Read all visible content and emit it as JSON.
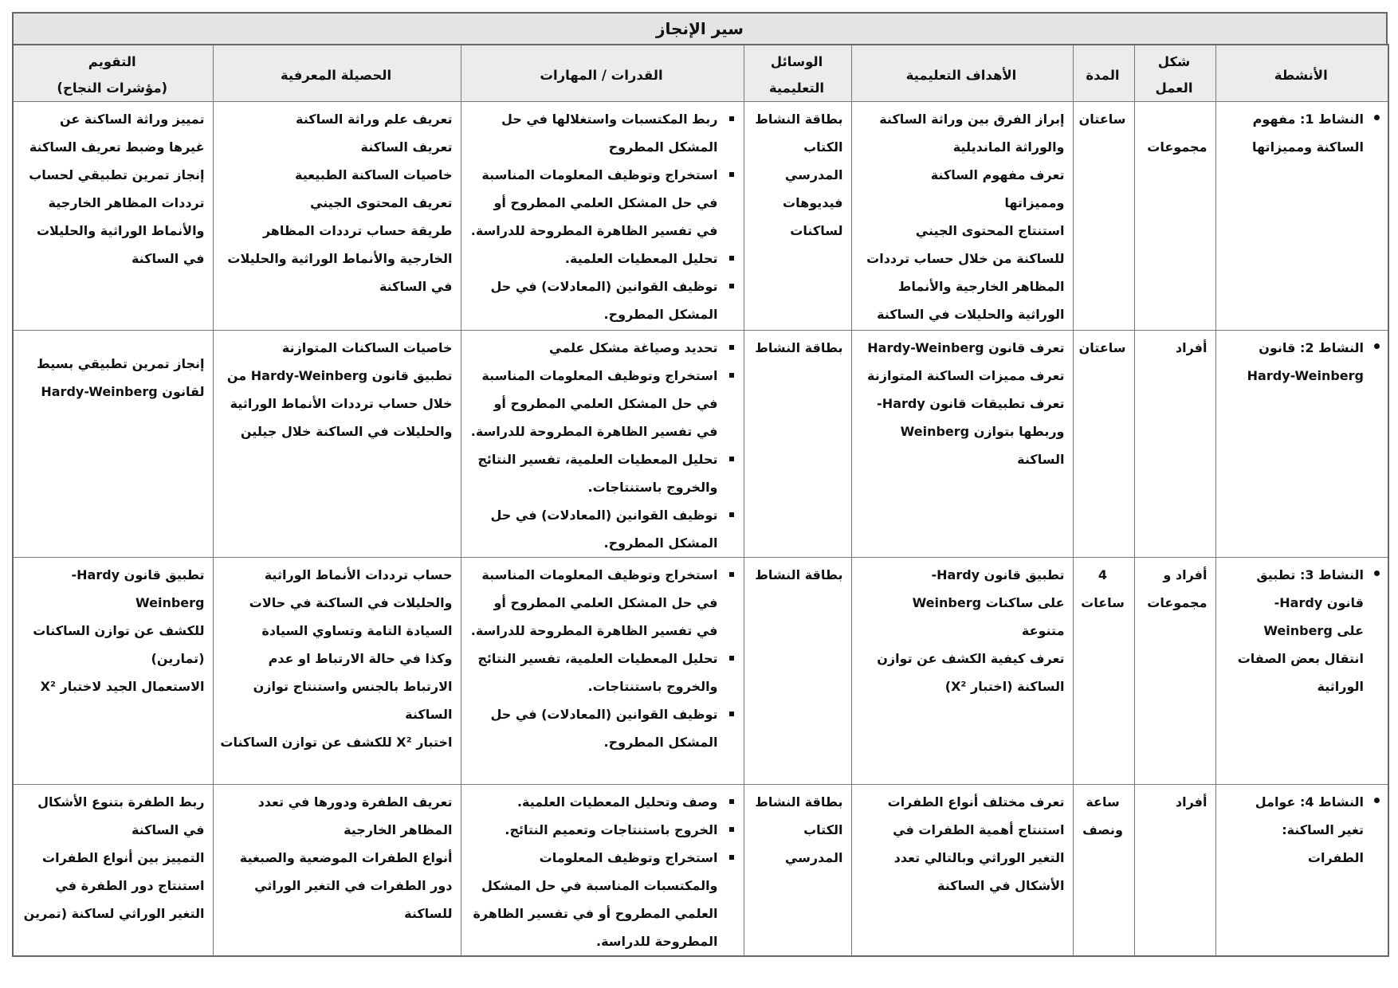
{
  "title": "سير الإنجاز",
  "headers": {
    "activities": [
      "الأنشطة"
    ],
    "work_form": [
      "شكل",
      "العمل"
    ],
    "duration": [
      "المدة"
    ],
    "objectives": [
      "الأهداف التعليمية"
    ],
    "means": [
      "الوسائل",
      "التعليمية"
    ],
    "skills": [
      "القدرات / المهارات"
    ],
    "knowledge": [
      "الحصيلة المعرفية"
    ],
    "evaluation": [
      "التقويم",
      "(مؤشرات النجاح)"
    ]
  },
  "rows": [
    {
      "activity": [
        "النشاط 1: مفهوم",
        "الساكنة ومميزاتها"
      ],
      "work_form": [
        "مجموعات"
      ],
      "duration": [
        "ساعتان"
      ],
      "objectives": [
        "إبراز الفرق بين وراثة الساكنة",
        "والوراثة المانديلية",
        "تعرف مفهوم الساكنة",
        "ومميزاتها",
        "استنتاج المحتوى الجيني",
        "للساكنة من خلال حساب ترددات",
        "المظاهر الخارجية والأنماط",
        "الوراثية والحليلات في الساكنة"
      ],
      "means": [
        "بطاقة النشاط",
        "الكتاب",
        "المدرسي",
        "فيديوهات",
        "لساكنات"
      ],
      "skills": [
        [
          "ربط المكتسبات واستغلالها في حل",
          "المشكل المطروح"
        ],
        [
          "استخراج وتوظيف المعلومات المناسبة",
          "في حل المشكل العلمي المطروح أو",
          "في تفسير الظاهرة المطروحة للدراسة."
        ],
        [
          "تحليل المعطيات العلمية."
        ],
        [
          "توظيف القوانين (المعادلات) في حل",
          "المشكل المطروح."
        ]
      ],
      "knowledge": [
        "تعريف علم وراثة الساكنة",
        "تعريف الساكنة",
        "خاصيات الساكنة الطبيعية",
        "تعريف المحتوى الجيني",
        "طريقة حساب ترددات المظاهر",
        "الخارجية والأنماط الوراثية والحليلات",
        "في الساكنة"
      ],
      "evaluation": [
        "تمييز وراثة الساكنة عن",
        "غيرها وضبط تعريف الساكنة",
        "إنجاز تمرين تطبيقي لحساب",
        "ترددات المظاهر الخارجية",
        "والأنماط الوراثية والحليلات",
        "في الساكنة"
      ]
    },
    {
      "activity": [
        "النشاط 2: قانون",
        "Hardy-Weinberg"
      ],
      "work_form": [
        "أفراد"
      ],
      "duration": [
        "ساعتان"
      ],
      "objectives": [
        "تعرف قانون Hardy-Weinberg",
        "تعرف مميزات الساكنة المتوازنة",
        "تعرف تطبيقات قانون Hardy-",
        "Weinberg وربطها بتوازن",
        "الساكنة"
      ],
      "means": [
        "بطاقة النشاط"
      ],
      "skills": [
        [
          "تحديد وصياغة مشكل علمي"
        ],
        [
          "استخراج وتوظيف المعلومات المناسبة",
          "في حل المشكل العلمي المطروح أو",
          "في تفسير الظاهرة المطروحة للدراسة."
        ],
        [
          "تحليل المعطيات العلمية، تفسير النتائج",
          "والخروج باستنتاجات."
        ],
        [
          "توظيف القوانين (المعادلات) في حل",
          "المشكل المطروح."
        ]
      ],
      "knowledge": [
        "خاصيات الساكنات المتوازنة",
        "تطبيق قانون Hardy-Weinberg من",
        "خلال حساب ترددات الأنماط الوراثية",
        "والحليلات في الساكنة خلال جيلين"
      ],
      "evaluation": [
        "إنجاز تمرين تطبيقي بسيط",
        "لقانون Hardy-Weinberg"
      ]
    },
    {
      "activity": [
        "النشاط 3: تطبيق",
        "قانون Hardy-",
        "Weinberg على",
        "انتقال بعض الصفات",
        "الوراثية"
      ],
      "work_form": [
        "أفراد و",
        "مجموعات"
      ],
      "duration": [
        "4",
        "ساعات"
      ],
      "objectives": [
        "تطبيق قانون Hardy-",
        "Weinberg على ساكنات",
        "متنوعة",
        "تعرف كيفية الكشف عن توازن",
        "الساكنة (اختبار X²)"
      ],
      "means": [
        "بطاقة النشاط"
      ],
      "skills": [
        [
          "استخراج وتوظيف المعلومات المناسبة",
          "في حل المشكل العلمي المطروح أو",
          "في تفسير الظاهرة المطروحة للدراسة."
        ],
        [
          "تحليل المعطيات العلمية، تفسير النتائج",
          "والخروج باستنتاجات."
        ],
        [
          "توظيف القوانين (المعادلات) في حل",
          "المشكل المطروح."
        ]
      ],
      "knowledge": [
        "حساب ترددات الأنماط الوراثية",
        "والحليلات في الساكنة في حالات",
        "السيادة التامة وتساوي السيادة",
        "وكذا في حالة الارتباط او عدم",
        "الارتباط بالجنس واستنتاج توازن",
        "الساكنة",
        "اختبار X² للكشف عن توازن الساكنات"
      ],
      "evaluation": [
        "تطبيق قانون Hardy-",
        "Weinberg",
        "للكشف عن توازن الساكنات",
        "(تمارين)",
        "الاستعمال الجيد لاختبار X²"
      ]
    },
    {
      "activity": [
        "النشاط 4: عوامل",
        "تغير الساكنة:",
        "الطفرات"
      ],
      "work_form": [
        "أفراد"
      ],
      "duration": [
        "ساعة",
        "ونصف"
      ],
      "objectives": [
        "تعرف مختلف أنواع الطفرات",
        "استنتاج أهمية الطفرات في",
        "التغير الوراثي وبالتالي تعدد",
        "الأشكال في الساكنة"
      ],
      "means": [
        "بطاقة النشاط",
        "الكتاب",
        "المدرسي"
      ],
      "skills": [
        [
          "وصف وتحليل المعطيات العلمية."
        ],
        [
          "الخروج باستنتاجات وتعميم النتائج."
        ],
        [
          "استخراج وتوظيف المعلومات",
          "والمكتسبات المناسبة في حل المشكل",
          "العلمي المطروح أو في تفسير الظاهرة",
          "المطروحة للدراسة."
        ]
      ],
      "knowledge": [
        "تعريف الطفرة ودورها في تعدد",
        "المظاهر الخارجية",
        "أنواع الطفرات الموضعية والصبغية",
        "دور الطفرات في التغير الوراثي",
        "للساكنة"
      ],
      "evaluation": [
        "ربط الطفرة بتنوع الأشكال",
        "في الساكنة",
        "التمييز بين أنواع الطفرات",
        "استنتاج دور الطفرة في",
        "التغير الوراثي لساكنة (تمرين"
      ]
    }
  ]
}
